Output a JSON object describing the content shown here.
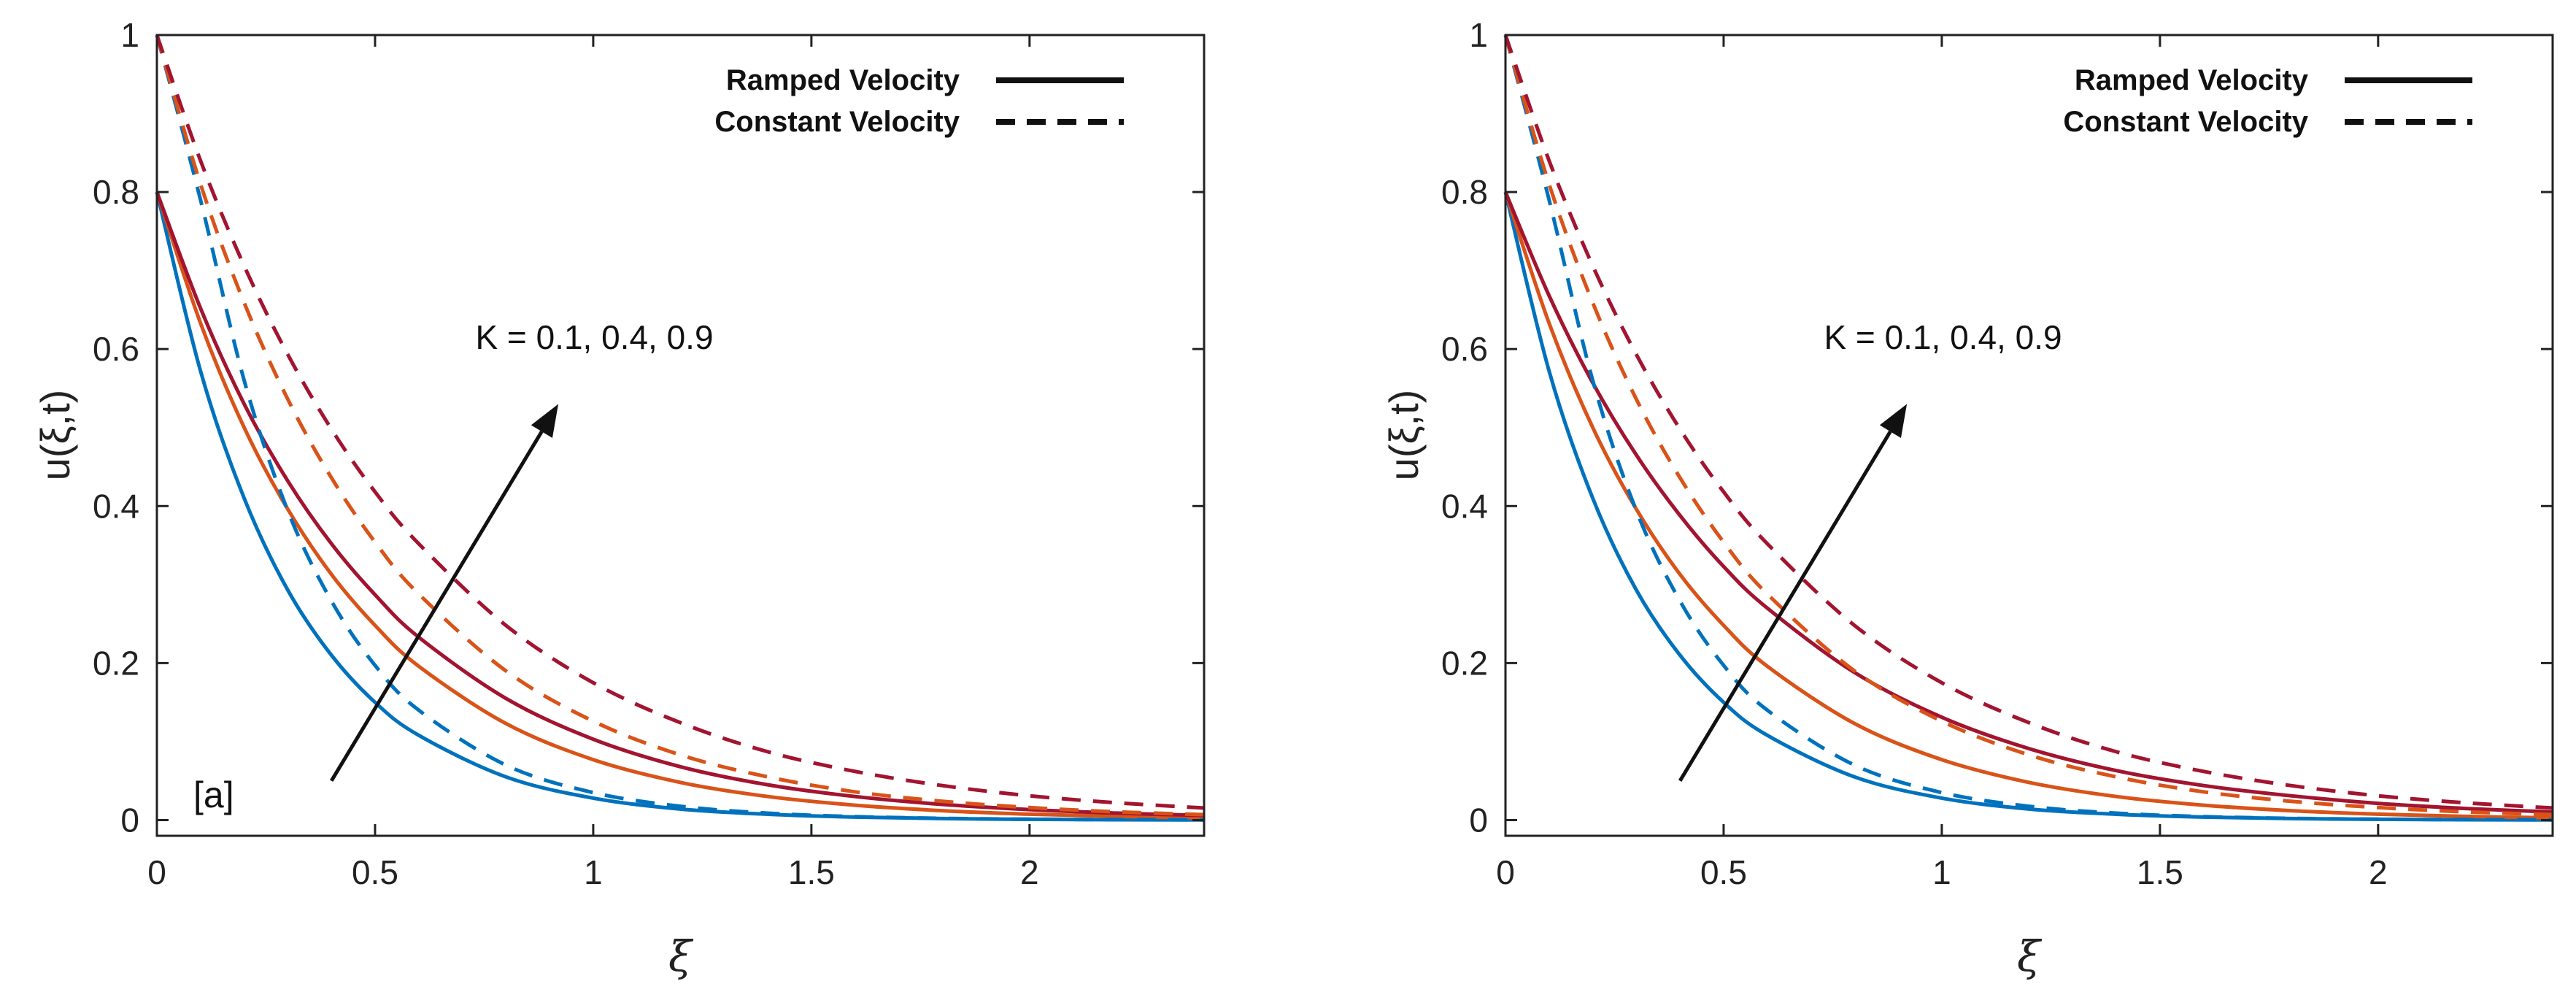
{
  "chart_data": [
    {
      "type": "line",
      "panel_label": "[a]",
      "xlabel": "ξ",
      "ylabel": "u(ξ,t)",
      "xlim": [
        0,
        2.4
      ],
      "ylim": [
        -0.02,
        1.0
      ],
      "x_ticks": [
        0,
        0.5,
        1,
        1.5,
        2
      ],
      "x_tick_labels": [
        "0",
        "0.5",
        "1",
        "1.5",
        "2"
      ],
      "y_ticks": [
        0,
        0.2,
        0.4,
        0.6,
        0.8,
        1
      ],
      "y_tick_labels": [
        "0",
        "0.2",
        "0.4",
        "0.6",
        "0.8",
        "1"
      ],
      "grid": false,
      "legend": {
        "position": "top-right",
        "entries": [
          {
            "label": "Ramped Velocity",
            "style": "solid"
          },
          {
            "label": "Constant Velocity",
            "style": "dashed"
          }
        ]
      },
      "annotation": {
        "text": "K = 0.1, 0.4, 0.9",
        "arrow_from": [
          0.4,
          0.05
        ],
        "arrow_to": [
          0.92,
          0.53
        ],
        "text_at": [
          0.73,
          0.6
        ]
      },
      "x": [
        0,
        0.1,
        0.2,
        0.3,
        0.4,
        0.5,
        0.6,
        0.8,
        1.0,
        1.2,
        1.4,
        1.6,
        1.8,
        2.0,
        2.2,
        2.4
      ],
      "series": [
        {
          "name": "Ramped K = 0.1",
          "style": "solid",
          "color": "#0072BD",
          "values": [
            0.8,
            0.572,
            0.41,
            0.293,
            0.21,
            0.15,
            0.108,
            0.055,
            0.028,
            0.014,
            0.0074,
            0.0038,
            0.0019,
            0.001,
            0.0005,
            0.0003
          ]
        },
        {
          "name": "Ramped K = 0.4",
          "style": "solid",
          "color": "#D95319",
          "values": [
            0.8,
            0.633,
            0.5,
            0.396,
            0.313,
            0.248,
            0.196,
            0.123,
            0.077,
            0.048,
            0.03,
            0.019,
            0.012,
            0.0075,
            0.0047,
            0.0029
          ]
        },
        {
          "name": "Ramped K = 0.9",
          "style": "solid",
          "color": "#A2142F",
          "values": [
            0.8,
            0.652,
            0.53,
            0.432,
            0.352,
            0.287,
            0.233,
            0.155,
            0.103,
            0.068,
            0.045,
            0.03,
            0.02,
            0.0134,
            0.0089,
            0.0059
          ]
        },
        {
          "name": "Constant K = 0.1",
          "style": "dashed",
          "color": "#0072BD",
          "values": [
            1.0,
            0.79,
            0.56,
            0.394,
            0.279,
            0.197,
            0.14,
            0.07,
            0.035,
            0.0176,
            0.0088,
            0.0044,
            0.0022,
            0.0011,
            0.0006,
            0.0003
          ]
        },
        {
          "name": "Constant K = 0.4",
          "style": "dashed",
          "color": "#D95319",
          "values": [
            1.0,
            0.81,
            0.659,
            0.536,
            0.436,
            0.354,
            0.288,
            0.19,
            0.126,
            0.083,
            0.055,
            0.036,
            0.024,
            0.016,
            0.0105,
            0.007
          ]
        },
        {
          "name": "Constant K = 0.9",
          "style": "dashed",
          "color": "#A2142F",
          "values": [
            1.0,
            0.84,
            0.706,
            0.593,
            0.498,
            0.418,
            0.352,
            0.248,
            0.175,
            0.124,
            0.087,
            0.062,
            0.044,
            0.031,
            0.022,
            0.0154
          ]
        }
      ]
    },
    {
      "type": "line",
      "panel_label": "",
      "xlabel": "ξ",
      "ylabel": "u(ξ,t)",
      "xlim": [
        0,
        2.4
      ],
      "ylim": [
        -0.02,
        1.0
      ],
      "x_ticks": [
        0,
        0.5,
        1,
        1.5,
        2
      ],
      "x_tick_labels": [
        "0",
        "0.5",
        "1",
        "1.5",
        "2"
      ],
      "y_ticks": [
        0,
        0.2,
        0.4,
        0.6,
        0.8,
        1
      ],
      "y_tick_labels": [
        "0",
        "0.2",
        "0.4",
        "0.6",
        "0.8",
        "1"
      ],
      "grid": false,
      "legend": {
        "position": "top-right",
        "entries": [
          {
            "label": "Ramped Velocity",
            "style": "solid"
          },
          {
            "label": "Constant Velocity",
            "style": "dashed"
          }
        ]
      },
      "annotation": {
        "text": "K = 0.1, 0.4, 0.9",
        "arrow_from": [
          0.4,
          0.05
        ],
        "arrow_to": [
          0.92,
          0.53
        ],
        "text_at": [
          0.73,
          0.6
        ]
      },
      "x": [
        0,
        0.1,
        0.2,
        0.3,
        0.4,
        0.5,
        0.6,
        0.8,
        1.0,
        1.2,
        1.4,
        1.6,
        1.8,
        2.0,
        2.2,
        2.4
      ],
      "series": [
        {
          "name": "Ramped K = 0.1",
          "style": "solid",
          "color": "#0072BD",
          "values": [
            0.8,
            0.572,
            0.41,
            0.293,
            0.21,
            0.15,
            0.108,
            0.055,
            0.028,
            0.014,
            0.0074,
            0.0038,
            0.0019,
            0.001,
            0.0005,
            0.0003
          ]
        },
        {
          "name": "Ramped K = 0.4",
          "style": "solid",
          "color": "#D95319",
          "values": [
            0.8,
            0.633,
            0.5,
            0.396,
            0.313,
            0.248,
            0.196,
            0.123,
            0.077,
            0.048,
            0.03,
            0.019,
            0.012,
            0.0075,
            0.0047,
            0.0029
          ]
        },
        {
          "name": "Ramped K = 0.9",
          "style": "solid",
          "color": "#A2142F",
          "values": [
            0.8,
            0.668,
            0.557,
            0.465,
            0.388,
            0.323,
            0.27,
            0.188,
            0.131,
            0.091,
            0.063,
            0.044,
            0.031,
            0.0213,
            0.0148,
            0.0103
          ]
        },
        {
          "name": "Constant K = 0.1",
          "style": "dashed",
          "color": "#0072BD",
          "values": [
            1.0,
            0.79,
            0.56,
            0.394,
            0.279,
            0.197,
            0.14,
            0.07,
            0.035,
            0.0176,
            0.0088,
            0.0044,
            0.0022,
            0.0011,
            0.0006,
            0.0003
          ]
        },
        {
          "name": "Constant K = 0.4",
          "style": "dashed",
          "color": "#D95319",
          "values": [
            1.0,
            0.81,
            0.659,
            0.536,
            0.436,
            0.354,
            0.288,
            0.19,
            0.126,
            0.083,
            0.055,
            0.036,
            0.024,
            0.016,
            0.0105,
            0.007
          ]
        },
        {
          "name": "Constant K = 0.9",
          "style": "dashed",
          "color": "#A2142F",
          "values": [
            1.0,
            0.84,
            0.706,
            0.593,
            0.498,
            0.418,
            0.352,
            0.248,
            0.175,
            0.124,
            0.087,
            0.062,
            0.044,
            0.031,
            0.022,
            0.0154
          ]
        }
      ]
    }
  ]
}
